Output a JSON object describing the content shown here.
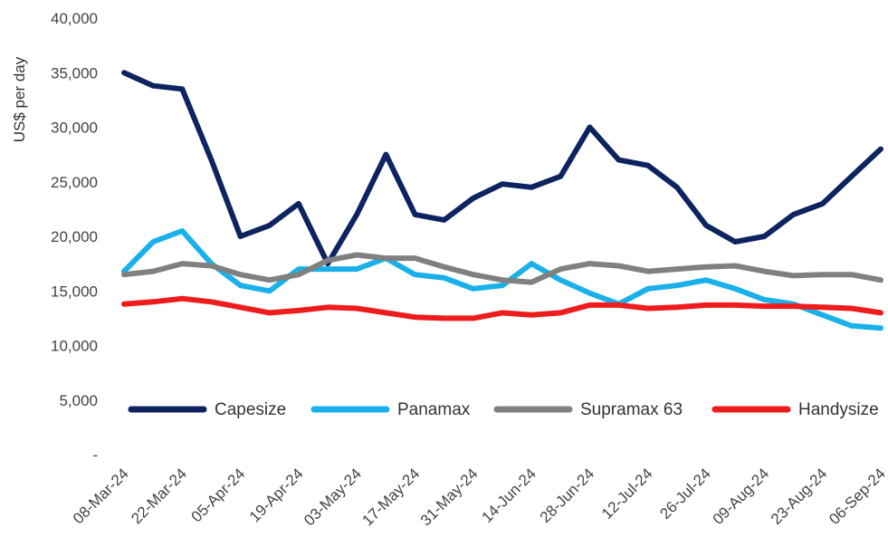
{
  "chart_data": {
    "type": "line",
    "y_label": "US$ per day",
    "categories": [
      "08-Mar-24",
      null,
      "22-Mar-24",
      null,
      "05-Apr-24",
      null,
      "19-Apr-24",
      null,
      "03-May-24",
      null,
      "17-May-24",
      null,
      "31-May-24",
      null,
      "14-Jun-24",
      null,
      "28-Jun-24",
      null,
      "12-Jul-24",
      null,
      "26-Jul-24",
      null,
      "09-Aug-24",
      null,
      "23-Aug-24",
      null,
      "06-Sep-24"
    ],
    "series": [
      {
        "name": "Capesize",
        "color": "#0d2461",
        "values": [
          35000,
          33800,
          33500,
          27000,
          20000,
          21000,
          23000,
          17500,
          22000,
          27500,
          22000,
          21500,
          23500,
          24800,
          24500,
          25500,
          30000,
          27000,
          26500,
          24500,
          21000,
          19500,
          20000,
          22000,
          23000,
          25500,
          28000
        ]
      },
      {
        "name": "Panamax",
        "color": "#1ab0ea",
        "values": [
          16800,
          19500,
          20500,
          17500,
          15500,
          15000,
          17000,
          17000,
          17000,
          18000,
          16500,
          16200,
          15200,
          15500,
          17500,
          16000,
          14800,
          13800,
          15200,
          15500,
          16000,
          15200,
          14200,
          13800,
          12800,
          11800,
          11600
        ]
      },
      {
        "name": "Supramax 63",
        "color": "#808080",
        "values": [
          16500,
          16800,
          17500,
          17300,
          16500,
          16000,
          16500,
          17800,
          18300,
          18000,
          18000,
          17200,
          16500,
          16000,
          15800,
          17000,
          17500,
          17300,
          16800,
          17000,
          17200,
          17300,
          16800,
          16400,
          16500,
          16500,
          16000
        ]
      },
      {
        "name": "Handysize",
        "color": "#ee1c1c",
        "values": [
          13800,
          14000,
          14300,
          14000,
          13500,
          13000,
          13200,
          13500,
          13400,
          13000,
          12600,
          12500,
          12500,
          13000,
          12800,
          13000,
          13700,
          13700,
          13400,
          13500,
          13700,
          13700,
          13600,
          13600,
          13500,
          13400,
          13000
        ]
      }
    ],
    "ylim": [
      0,
      40000
    ],
    "yticks": [
      {
        "value": 0,
        "label": "-"
      },
      {
        "value": 5000,
        "label": "5,000"
      },
      {
        "value": 10000,
        "label": "10,000"
      },
      {
        "value": 15000,
        "label": "15,000"
      },
      {
        "value": 20000,
        "label": "20,000"
      },
      {
        "value": 25000,
        "label": "25,000"
      },
      {
        "value": 30000,
        "label": "30,000"
      },
      {
        "value": 35000,
        "label": "35,000"
      },
      {
        "value": 40000,
        "label": "40,000"
      }
    ],
    "grid": false,
    "legend": "inside-bottom"
  }
}
